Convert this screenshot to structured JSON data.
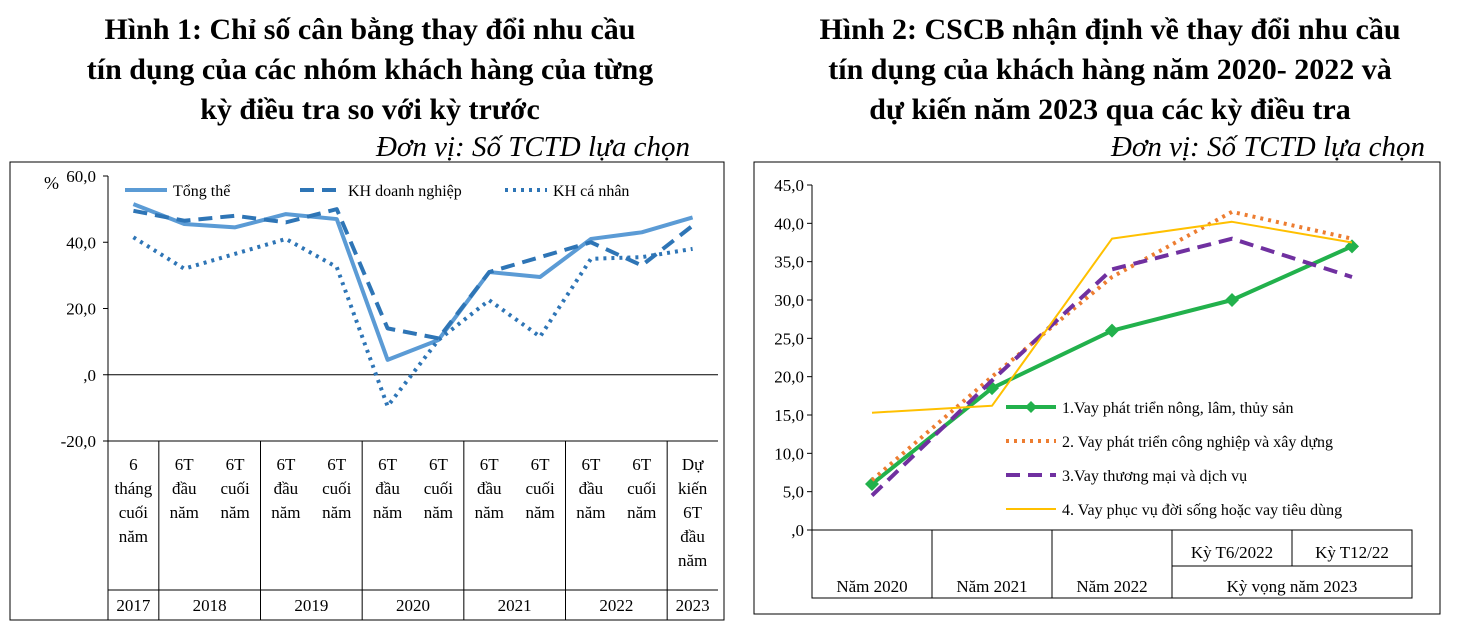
{
  "chart_data": [
    {
      "type": "line",
      "title": [
        "Hình 1: Chỉ số cân bằng thay đổi nhu cầu",
        "tín dụng của các nhóm khách hàng của từng",
        "kỳ điều tra so với kỳ trước"
      ],
      "unit_note": "Đơn vị: Số TCTD lựa chọn",
      "ylabel": "%",
      "ylim": [
        -20,
        60
      ],
      "yticks": [
        "-20,0",
        ",0",
        "20,0",
        "40,0",
        "60,0"
      ],
      "ytick_values": [
        -20,
        0,
        20,
        40,
        60
      ],
      "categories": [
        [
          "6",
          "tháng",
          "cuối",
          "năm"
        ],
        [
          "6T",
          "đầu",
          "năm"
        ],
        [
          "6T",
          "cuối",
          "năm"
        ],
        [
          "6T",
          "đầu",
          "năm"
        ],
        [
          "6T",
          "cuối",
          "năm"
        ],
        [
          "6T",
          "đầu",
          "năm"
        ],
        [
          "6T",
          "cuối",
          "năm"
        ],
        [
          "6T",
          "đầu",
          "năm"
        ],
        [
          "6T",
          "cuối",
          "năm"
        ],
        [
          "6T",
          "đầu",
          "năm"
        ],
        [
          "6T",
          "cuối",
          "năm"
        ],
        [
          "Dự",
          "kiến",
          "6T",
          "đầu",
          "năm"
        ]
      ],
      "years": [
        {
          "label": "2017",
          "span": 1
        },
        {
          "label": "2018",
          "span": 2
        },
        {
          "label": "2019",
          "span": 2
        },
        {
          "label": "2020",
          "span": 2
        },
        {
          "label": "2021",
          "span": 2
        },
        {
          "label": "2022",
          "span": 2
        },
        {
          "label": "2023",
          "span": 1
        }
      ],
      "legend_position": "top",
      "series": [
        {
          "name": "Tổng thể",
          "style": "solid",
          "color": "#5B9BD5",
          "values": [
            51.5,
            45.5,
            44.5,
            48.5,
            47,
            4.5,
            10.5,
            31,
            29.5,
            41,
            43,
            47.5
          ]
        },
        {
          "name": "KH doanh nghiệp",
          "style": "dashed",
          "color": "#2E75B6",
          "values": [
            49.5,
            46.5,
            48,
            46,
            50,
            14,
            11,
            31,
            35.5,
            40,
            33,
            45
          ]
        },
        {
          "name": "KH cá nhân",
          "style": "dotted",
          "color": "#2E75B6",
          "values": [
            41.5,
            32,
            36.5,
            41,
            32.5,
            -9.5,
            10.5,
            22.5,
            11.5,
            35,
            35.5,
            38
          ]
        }
      ]
    },
    {
      "type": "line",
      "title": [
        "Hình 2: CSCB nhận định về thay đổi nhu cầu",
        "tín dụng của khách hàng năm 2020- 2022 và",
        "dự kiến năm 2023 qua các kỳ điều tra"
      ],
      "unit_note": "Đơn vị: Số TCTD lựa chọn",
      "ylim": [
        0,
        45
      ],
      "yticks": [
        ",0",
        "5,0",
        "10,0",
        "15,0",
        "20,0",
        "25,0",
        "30,0",
        "35,0",
        "40,0",
        "45,0"
      ],
      "ytick_values": [
        0,
        5,
        10,
        15,
        20,
        25,
        30,
        35,
        40,
        45
      ],
      "categories": [
        "Năm 2020",
        "Năm 2021",
        "Năm 2022",
        "Kỳ T6/2022",
        "Kỳ T12/22"
      ],
      "group_label": "Kỳ vọng năm 2023",
      "legend_position": "inside-bottom-right",
      "series": [
        {
          "name": "1.Vay phát triển nông, lâm, thủy sản",
          "style": "solid-marker",
          "color": "#22B14C",
          "values": [
            6,
            18.5,
            26,
            30,
            37
          ]
        },
        {
          "name": "2. Vay phát triển công nghiệp và xây dựng",
          "style": "dotted",
          "color": "#ED7D31",
          "values": [
            6.5,
            20,
            33,
            41.5,
            38
          ]
        },
        {
          "name": "3.Vay thương mại và dịch vụ",
          "style": "dashed",
          "color": "#7030A0",
          "values": [
            4.5,
            19.5,
            34,
            38,
            33
          ]
        },
        {
          "name": "4. Vay phục vụ đời sống hoặc vay tiêu dùng",
          "style": "solid",
          "color": "#FFC000",
          "values": [
            15.3,
            16.2,
            38,
            40.2,
            37.5
          ]
        }
      ]
    }
  ]
}
